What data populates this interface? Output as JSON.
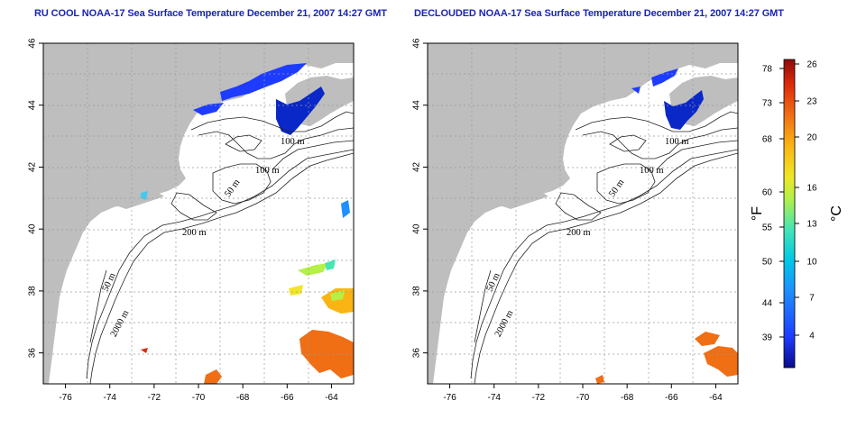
{
  "panels": [
    {
      "id": "left",
      "title": "RU COOL NOAA-17 Sea Surface Temperature December 21, 2007 14:27 GMT",
      "contour_labels": [
        "100 m",
        "100 m",
        "50 m",
        "200 m",
        "50 m",
        "2000 m"
      ]
    },
    {
      "id": "right",
      "title": "DECLOUDED NOAA-17 Sea Surface Temperature December 21, 2007 14:27 GMT",
      "contour_labels": [
        "100 m",
        "100 m",
        "50 m",
        "200 m",
        "50 m",
        "2000 m"
      ]
    }
  ],
  "axes": {
    "lon_ticks": [
      "-76",
      "-74",
      "-72",
      "-70",
      "-68",
      "-66",
      "-64"
    ],
    "lat_ticks": [
      "46",
      "44",
      "42",
      "40",
      "38",
      "36"
    ],
    "lon_range": [
      -77,
      -63
    ],
    "lat_range": [
      35,
      46
    ],
    "grid": "dotted"
  },
  "colorbar": {
    "fahrenheit_label": "°F",
    "celsius_label": "°C",
    "fahrenheit_ticks": [
      "78",
      "73",
      "68",
      "60",
      "55",
      "50",
      "44",
      "39"
    ],
    "celsius_ticks": [
      "26",
      "23",
      "20",
      "16",
      "13",
      "10",
      "7",
      "4"
    ],
    "colors": [
      "#0a0a8c",
      "#1e3cff",
      "#1e90ff",
      "#00c8e6",
      "#46e6b4",
      "#b4f046",
      "#f0e628",
      "#fab414",
      "#f06e14",
      "#dc2a0a",
      "#8c0a0a"
    ]
  },
  "colors": {
    "land": "#bebebe",
    "title": "#1a24b4",
    "contour": "#222222",
    "grid": "#9a9a9a"
  }
}
